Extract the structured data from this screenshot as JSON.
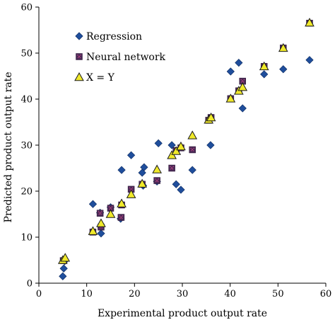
{
  "chart_data": {
    "type": "scatter",
    "xlabel": "Experimental product output rate",
    "ylabel": "Predicted product output  rate",
    "xlim": [
      0,
      60
    ],
    "ylim": [
      0,
      60
    ],
    "xticks": [
      0,
      10,
      20,
      30,
      40,
      50,
      60
    ],
    "yticks": [
      0,
      10,
      20,
      30,
      40,
      50,
      60
    ],
    "grid": false,
    "legend_position": "top-left",
    "series": [
      {
        "name": "Regression",
        "marker": "diamond",
        "color": "#1f4e9c",
        "points": [
          [
            5.0,
            1.5
          ],
          [
            5.2,
            3.2
          ],
          [
            5.4,
            4.8
          ],
          [
            11.3,
            17.2
          ],
          [
            12.8,
            15.3
          ],
          [
            13.0,
            10.8
          ],
          [
            15.0,
            16.5
          ],
          [
            17.1,
            14.0
          ],
          [
            17.3,
            24.6
          ],
          [
            19.3,
            27.8
          ],
          [
            21.6,
            24.0
          ],
          [
            22.0,
            25.2
          ],
          [
            21.8,
            21.2
          ],
          [
            24.7,
            22.1
          ],
          [
            25.0,
            30.4
          ],
          [
            27.8,
            30.0
          ],
          [
            28.7,
            21.5
          ],
          [
            29.7,
            20.3
          ],
          [
            32.1,
            24.6
          ],
          [
            35.9,
            30.0
          ],
          [
            40.1,
            46.0
          ],
          [
            41.8,
            47.9
          ],
          [
            42.6,
            38.0
          ],
          [
            47.1,
            45.4
          ],
          [
            51.1,
            46.5
          ],
          [
            56.6,
            48.5
          ]
        ]
      },
      {
        "name": "Neural network",
        "marker": "square",
        "color": "#4a2a57",
        "points": [
          [
            5.1,
            4.9
          ],
          [
            11.3,
            11.1
          ],
          [
            12.8,
            15.2
          ],
          [
            13.0,
            12.2
          ],
          [
            15.0,
            16.3
          ],
          [
            17.2,
            14.3
          ],
          [
            17.3,
            17.0
          ],
          [
            19.3,
            20.4
          ],
          [
            21.6,
            21.5
          ],
          [
            24.7,
            22.3
          ],
          [
            27.8,
            25.0
          ],
          [
            28.7,
            28.8
          ],
          [
            29.7,
            29.4
          ],
          [
            32.1,
            29.0
          ],
          [
            35.5,
            35.4
          ],
          [
            36.0,
            36.0
          ],
          [
            40.1,
            40.1
          ],
          [
            41.8,
            41.8
          ],
          [
            42.6,
            43.9
          ],
          [
            47.1,
            47.1
          ],
          [
            51.1,
            51.1
          ],
          [
            56.6,
            56.5
          ]
        ]
      },
      {
        "name": "X = Y",
        "marker": "triangle",
        "color": "#f0e92a",
        "points": [
          [
            5.0,
            5.0
          ],
          [
            5.5,
            5.5
          ],
          [
            11.3,
            11.3
          ],
          [
            13.0,
            13.0
          ],
          [
            15.0,
            15.0
          ],
          [
            17.3,
            17.3
          ],
          [
            19.3,
            19.3
          ],
          [
            21.6,
            21.6
          ],
          [
            24.7,
            24.7
          ],
          [
            27.8,
            27.8
          ],
          [
            28.7,
            28.7
          ],
          [
            29.7,
            29.7
          ],
          [
            32.1,
            32.1
          ],
          [
            35.5,
            35.5
          ],
          [
            36.0,
            36.0
          ],
          [
            40.1,
            40.1
          ],
          [
            41.8,
            41.8
          ],
          [
            42.6,
            42.6
          ],
          [
            47.1,
            47.1
          ],
          [
            51.1,
            51.1
          ],
          [
            56.6,
            56.6
          ]
        ]
      }
    ]
  }
}
